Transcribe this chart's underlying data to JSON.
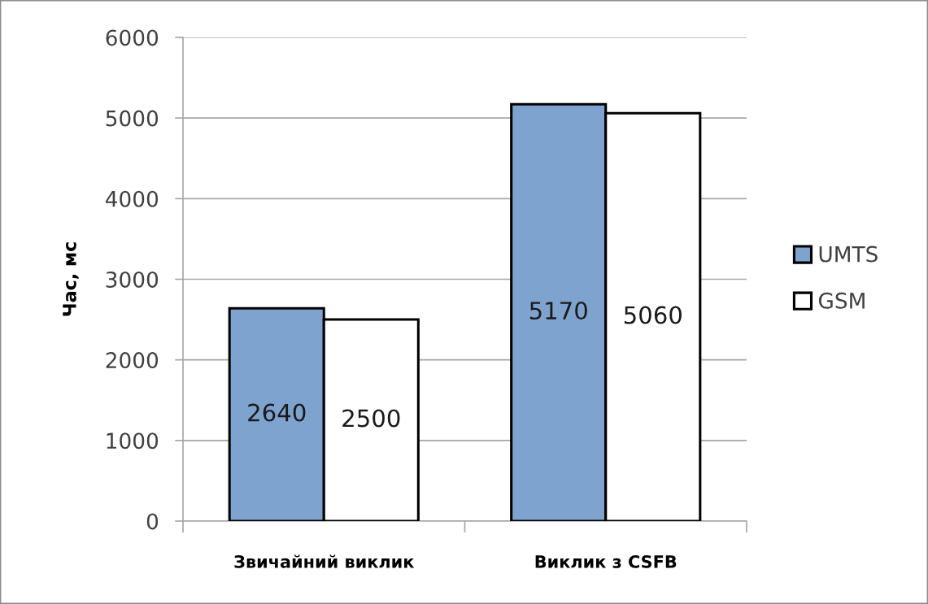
{
  "chart_data": {
    "type": "bar",
    "ylabel": "Час, мс",
    "categories": [
      "Звичайний виклик",
      "Виклик з CSFB"
    ],
    "series": [
      {
        "name": "UMTS",
        "color": "#7fa3cf",
        "values": [
          2640,
          5170
        ]
      },
      {
        "name": "GSM",
        "color": "#ffffff",
        "values": [
          2500,
          5060
        ]
      }
    ],
    "ylim": [
      0,
      6000
    ],
    "yticks": [
      0,
      1000,
      2000,
      3000,
      4000,
      5000,
      6000
    ],
    "grid": "y",
    "legend": "right",
    "data_labels": true
  }
}
